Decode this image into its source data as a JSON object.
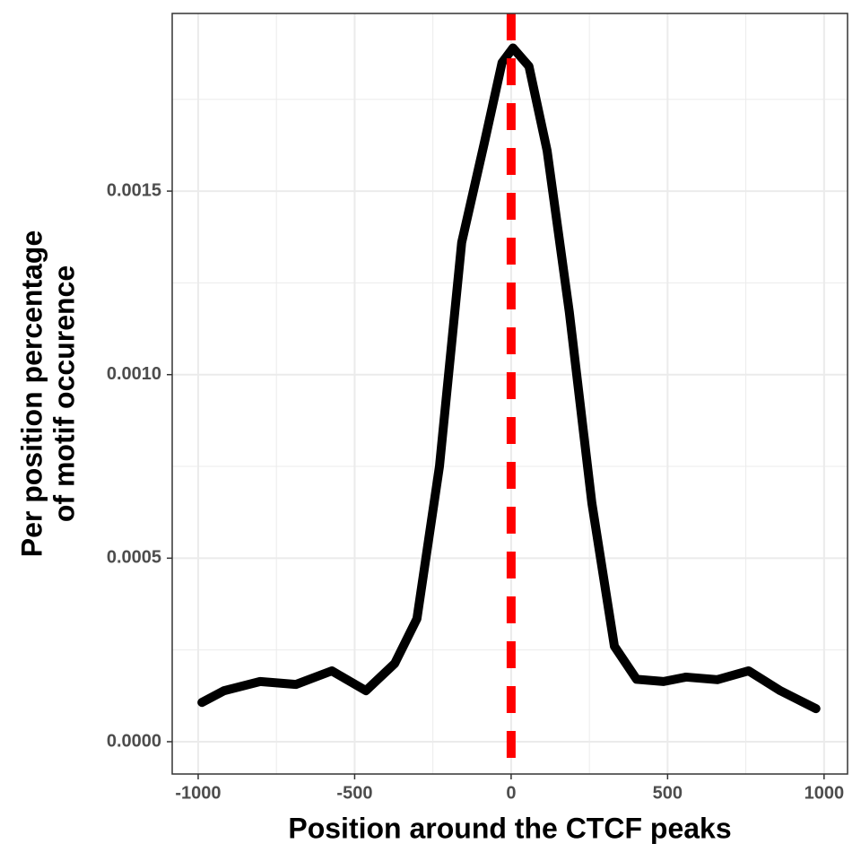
{
  "chart_data": {
    "type": "line",
    "x_label": "Position around the CTCF peaks",
    "y_label": [
      "Per position percentage",
      "of motif occurence"
    ],
    "x": [
      -988,
      -917,
      -802,
      -688,
      -573,
      -464,
      -372,
      -301,
      -229,
      -158,
      -86,
      -29,
      6,
      57,
      115,
      186,
      258,
      330,
      401,
      487,
      559,
      659,
      759,
      860,
      974
    ],
    "series": [
      {
        "color": "#000000",
        "values": [
          0.000107,
          0.000139,
          0.000164,
          0.000156,
          0.000193,
          0.000139,
          0.000213,
          0.000335,
          0.00075,
          0.00136,
          0.00163,
          0.00185,
          0.00189,
          0.00184,
          0.00161,
          0.00117,
          0.00065,
          0.00026,
          0.00017,
          0.000164,
          0.000176,
          0.000169,
          0.000193,
          0.000139,
          9e-05
        ]
      }
    ],
    "vline": {
      "x": 0,
      "color": "#ff0000"
    },
    "xlim": [
      -1083,
      1075
    ],
    "ylim": [
      -8.8e-05,
      0.001984
    ],
    "xticks": [
      -1000,
      -500,
      0,
      500,
      1000
    ],
    "yticks": [
      {
        "value": 0,
        "label": "0.0000"
      },
      {
        "value": 0.0005,
        "label": "0.0005"
      },
      {
        "value": 0.001,
        "label": "0.0010"
      },
      {
        "value": 0.0015,
        "label": "0.0015"
      }
    ],
    "x_minor_grid": [
      -750,
      -250,
      250,
      750
    ],
    "y_minor_grid": [
      0.00025,
      0.00075,
      0.00125,
      0.00175
    ],
    "grid": true
  }
}
